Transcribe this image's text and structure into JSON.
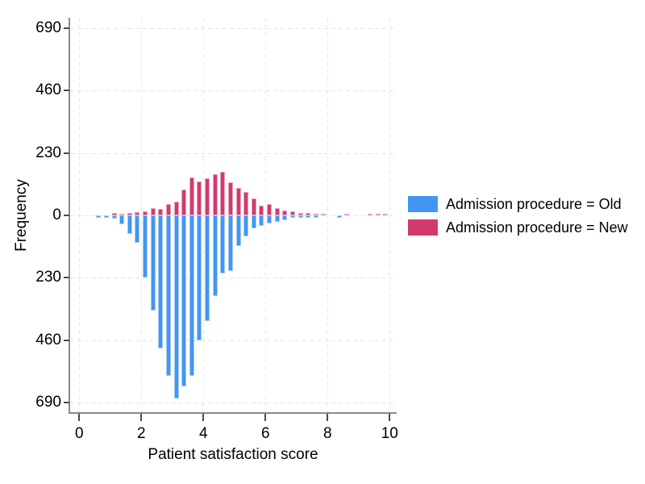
{
  "figure": {
    "y_axis": {
      "label": "Frequency",
      "tick_labels": [
        "690",
        "460",
        "230",
        "0",
        "230",
        "460",
        "690"
      ]
    },
    "x_axis": {
      "label": "Patient satisfaction score",
      "tick_labels": [
        "0",
        "2",
        "4",
        "6",
        "8",
        "10"
      ]
    },
    "legend": {
      "items": [
        {
          "label": "Admission procedure = Old",
          "color": "#4295F3",
          "edge_color": "#A6CCF8"
        },
        {
          "label": "Admission procedure = New",
          "color": "#D23A6E",
          "edge_color": "#E9A3BE"
        }
      ]
    }
  },
  "chart_data": {
    "type": "bar",
    "subtype": "mirrored histogram (two distributions sharing one x axis; one plotted up, one down)",
    "title": "",
    "xlabel": "Patient satisfaction score",
    "ylabel": "Frequency",
    "x_ticks": [
      0,
      2,
      4,
      6,
      8,
      10
    ],
    "y_ticks_displayed": [
      690,
      460,
      230,
      0,
      230,
      460,
      690
    ],
    "ylim": [
      -727,
      727
    ],
    "xlim": [
      -0.3,
      10.2
    ],
    "grid": true,
    "legend_position": "right-center",
    "bin_width": 0.25,
    "bin_centers": [
      0.625,
      0.875,
      1.125,
      1.375,
      1.625,
      1.875,
      2.125,
      2.375,
      2.625,
      2.875,
      3.125,
      3.375,
      3.625,
      3.875,
      4.125,
      4.375,
      4.625,
      4.875,
      5.125,
      5.375,
      5.625,
      5.875,
      6.125,
      6.375,
      6.625,
      6.875,
      7.125,
      7.375,
      7.625,
      7.875,
      8.125,
      8.375,
      8.625,
      8.875,
      9.125,
      9.375,
      9.625,
      9.875
    ],
    "series": [
      {
        "name": "Admission procedure = Old",
        "direction": "down",
        "color": "#4295F3",
        "edge_color": "#A6CCF8",
        "values": [
          6,
          7,
          12,
          33,
          68,
          100,
          230,
          350,
          490,
          590,
          675,
          630,
          590,
          462,
          388,
          297,
          215,
          206,
          112,
          78,
          48,
          38,
          29,
          24,
          17,
          10,
          8,
          3,
          5,
          0,
          0,
          6,
          0,
          0,
          0,
          0,
          0,
          0
        ]
      },
      {
        "name": "Admission procedure = New",
        "direction": "up",
        "color": "#D23A6E",
        "edge_color": "#E9A3BE",
        "values": [
          0,
          0,
          8,
          6,
          9,
          11,
          16,
          27,
          24,
          43,
          50,
          94,
          139,
          126,
          136,
          153,
          160,
          121,
          102,
          86,
          62,
          36,
          43,
          26,
          19,
          16,
          9,
          8,
          4,
          5,
          0,
          0,
          4,
          0,
          0,
          3,
          3,
          3
        ]
      }
    ]
  }
}
